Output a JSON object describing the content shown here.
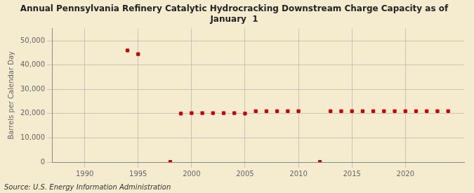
{
  "chart_data": {
    "type": "scatter",
    "title": "Annual Pennsylvania Refinery Catalytic Hydrocracking Downstream Charge Capacity as of\nJanuary  1",
    "ylabel": "Barrels per Calendar Day",
    "source": "Source: U.S. Energy Information Administration",
    "color": "#cc0000",
    "marker": "square",
    "grid": true,
    "legend": false,
    "x": [
      1994,
      1995,
      1998,
      1999,
      2000,
      2001,
      2002,
      2003,
      2004,
      2005,
      2006,
      2007,
      2008,
      2009,
      2010,
      2012,
      2013,
      2014,
      2015,
      2016,
      2017,
      2018,
      2019,
      2020,
      2021,
      2022,
      2023,
      2024
    ],
    "values": [
      46000,
      44500,
      100,
      20000,
      20200,
      20200,
      20200,
      20200,
      20200,
      20000,
      21000,
      21000,
      21000,
      21000,
      21000,
      100,
      21000,
      21000,
      21000,
      21000,
      21000,
      21000,
      21000,
      21000,
      21000,
      21000,
      21000,
      21000
    ],
    "xlim": [
      1987,
      2025.5
    ],
    "xticks": [
      1990,
      1995,
      2000,
      2005,
      2010,
      2015,
      2020
    ],
    "ylim": [
      0,
      55000
    ],
    "yticks": [
      0,
      {
        "value": 10000,
        "label": "10,000"
      },
      {
        "value": 20000,
        "label": "20,000"
      },
      {
        "value": 30000,
        "label": "30,000"
      },
      {
        "value": 40000,
        "label": "40,000"
      },
      {
        "value": 50000,
        "label": "50,000"
      }
    ]
  }
}
